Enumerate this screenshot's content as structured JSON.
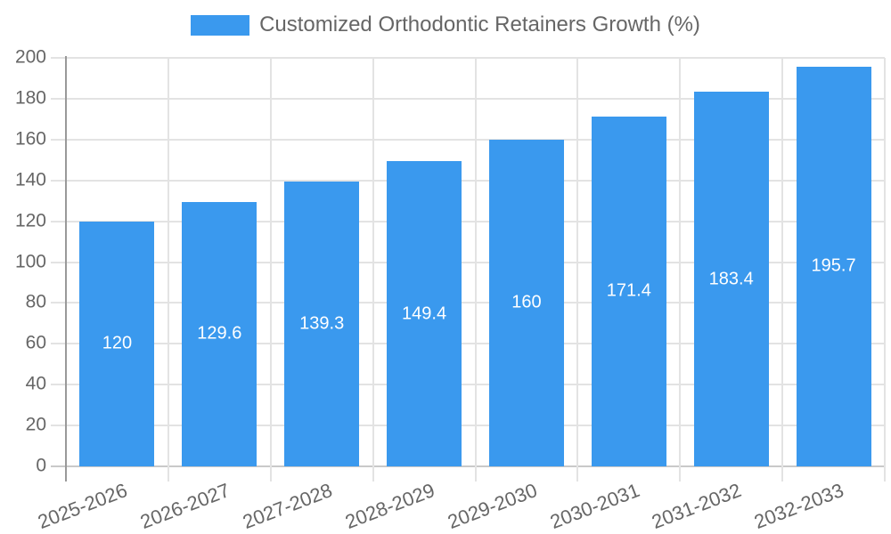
{
  "chart_data": {
    "type": "bar",
    "legend_label": "Customized Orthodontic Retainers Growth (%)",
    "legend_position": "top",
    "categories": [
      "2025-2026",
      "2026-2027",
      "2027-2028",
      "2028-2029",
      "2029-2030",
      "2030-2031",
      "2031-2032",
      "2032-2033"
    ],
    "values": [
      120,
      129.6,
      139.3,
      149.4,
      160,
      171.4,
      183.4,
      195.7
    ],
    "value_labels": [
      "120",
      "129.6",
      "139.3",
      "149.4",
      "160",
      "171.4",
      "183.4",
      "195.7"
    ],
    "xlabel": "",
    "ylabel": "",
    "ylim": [
      0,
      200
    ],
    "ytick_step": 20,
    "yticks": [
      0,
      20,
      40,
      60,
      80,
      100,
      120,
      140,
      160,
      180,
      200
    ],
    "grid": true,
    "colors": {
      "bar": "#3a99ee",
      "grid_line": "#e3e3e3",
      "zero_line": "#c9c9c9",
      "axis_line": "#999999",
      "tick_text": "#666666",
      "legend_text": "#666666",
      "bar_label_text": "#ffffff"
    }
  }
}
